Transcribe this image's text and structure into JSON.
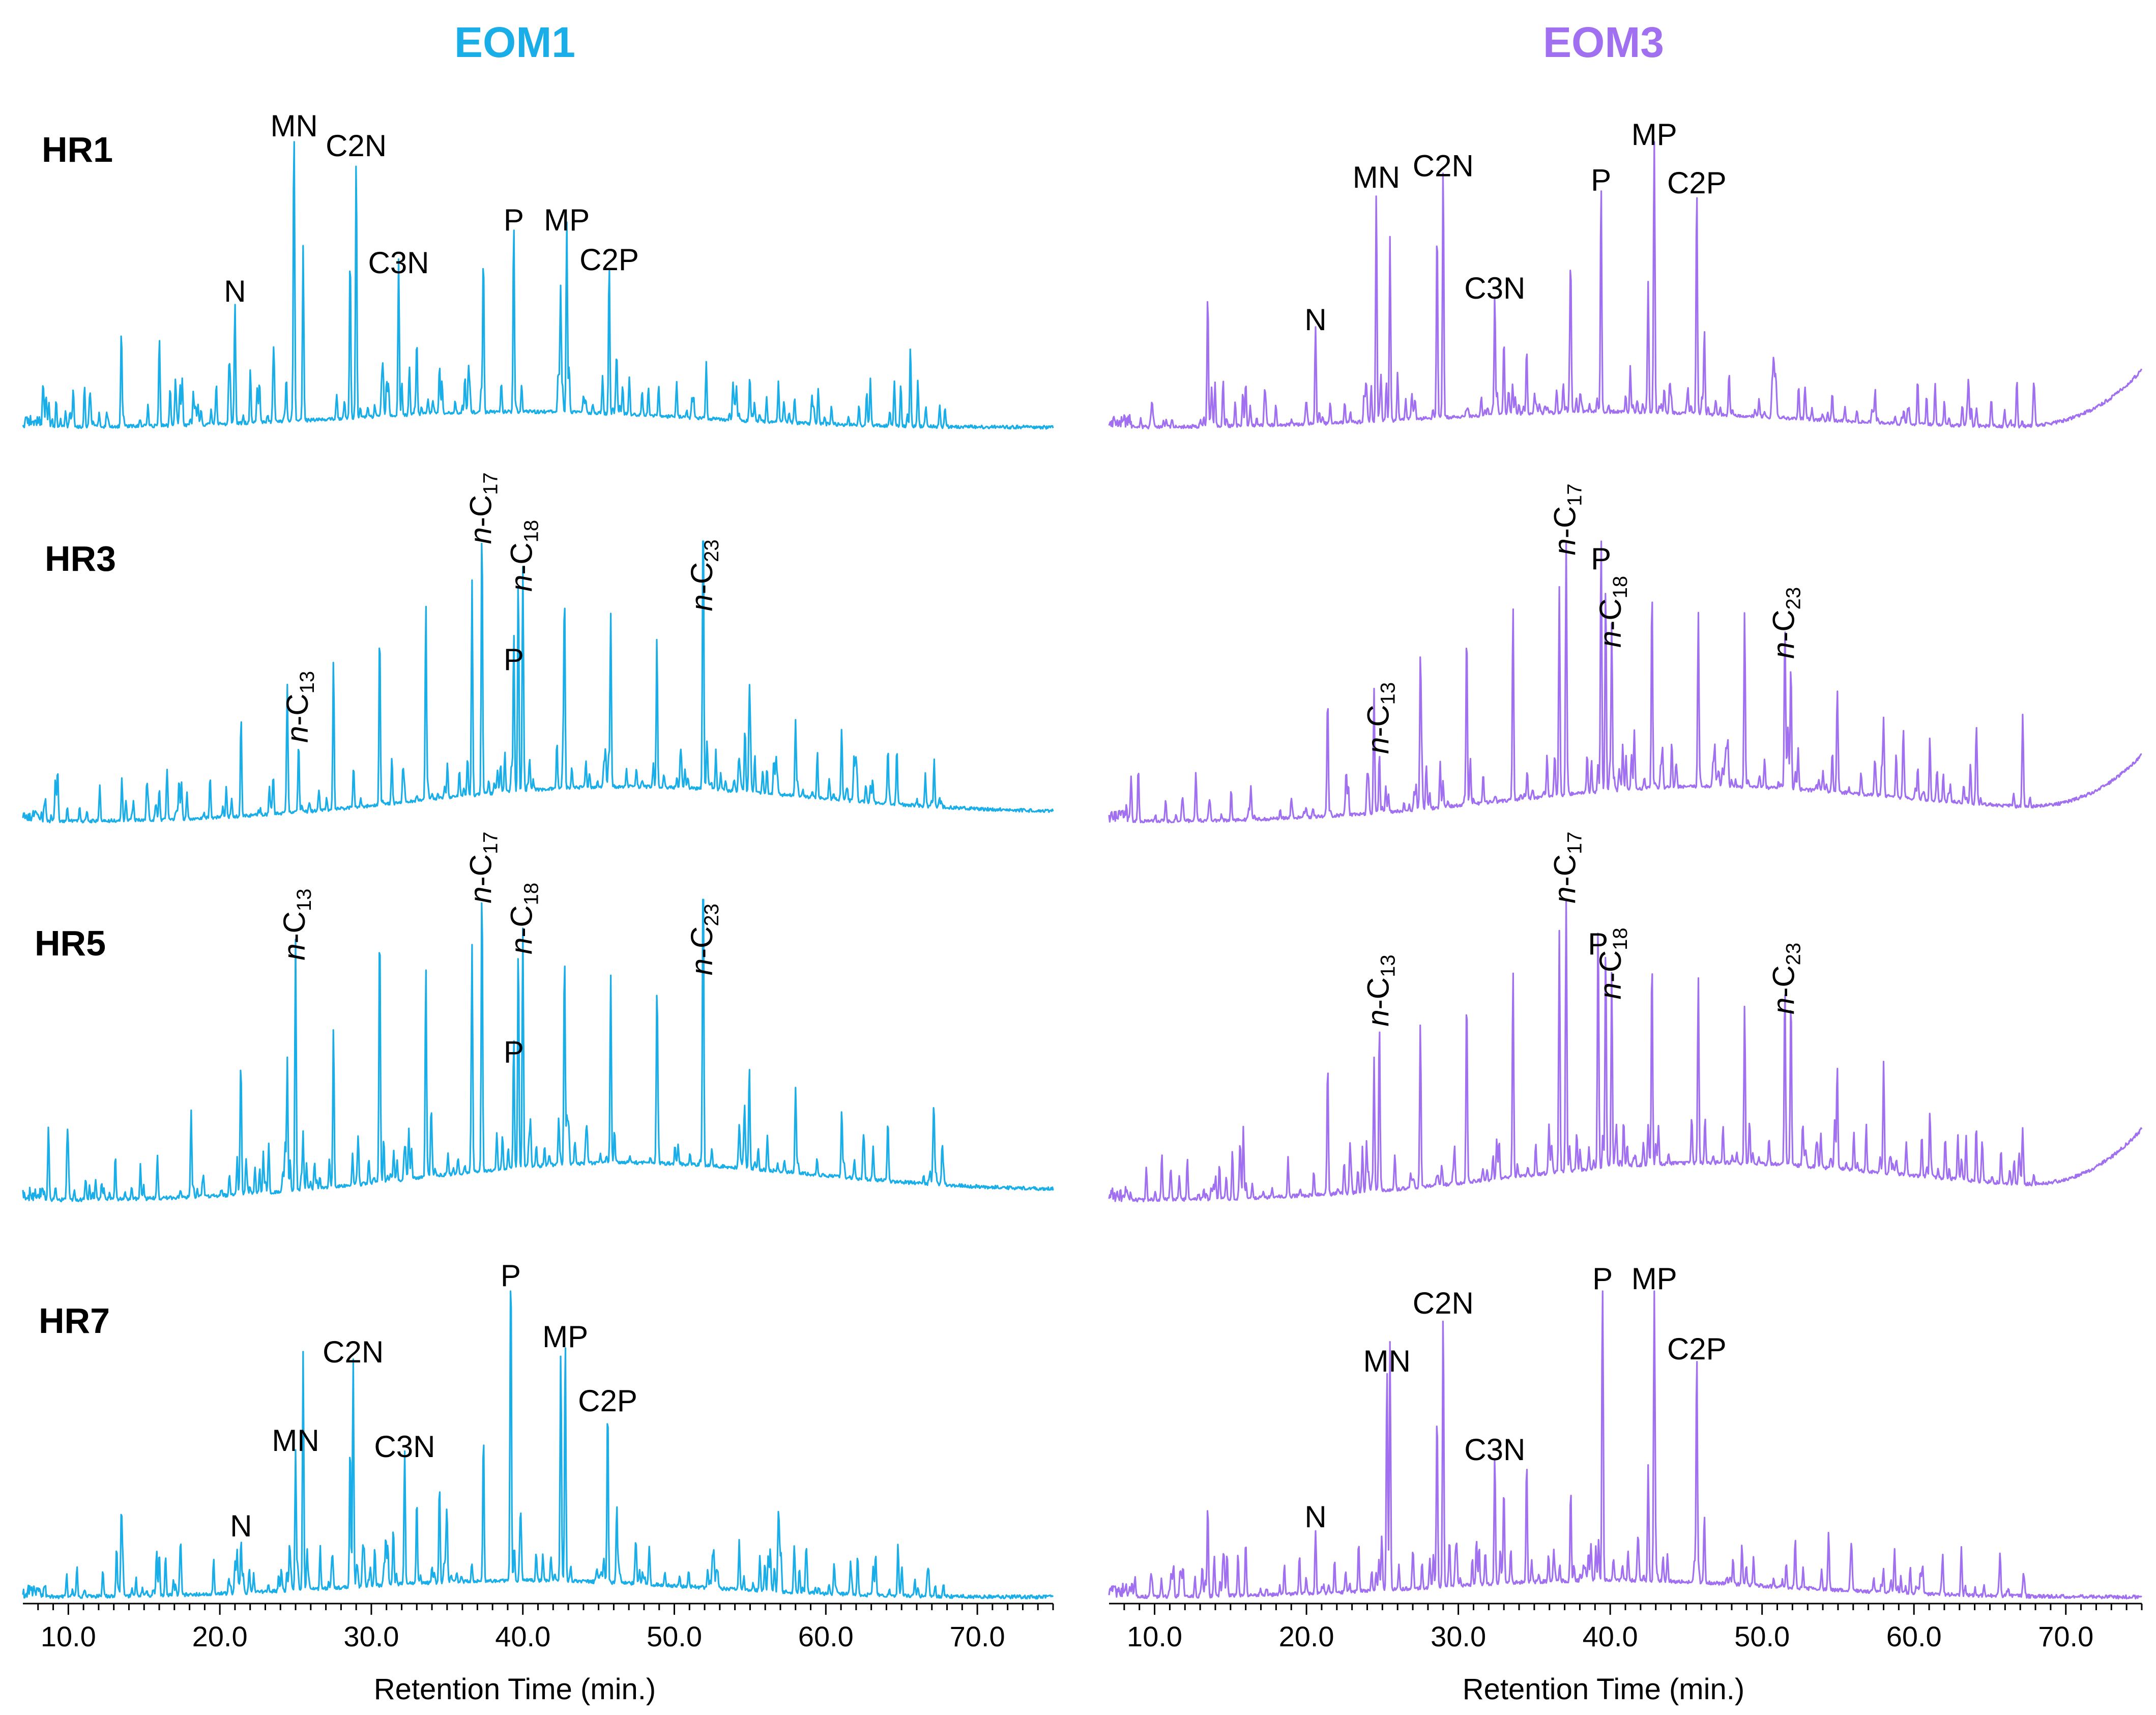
{
  "chart_data": {
    "type": "line",
    "columns": [
      {
        "title": "EOM1",
        "color": "#1aaee8"
      },
      {
        "title": "EOM3",
        "color": "#a070f0"
      }
    ],
    "rows": [
      "HR1",
      "HR3",
      "HR5",
      "HR7"
    ],
    "xlabel": "Retention Time (min.)",
    "xlim": [
      7.0,
      75.0
    ],
    "xticks": [
      "10.0",
      "20.0",
      "30.0",
      "40.0",
      "50.0",
      "60.0",
      "70.0"
    ],
    "xtick_values": [
      10,
      20,
      30,
      40,
      50,
      60,
      70
    ],
    "panels": [
      {
        "id": "EOM1-HR1",
        "column": 0,
        "row": 0,
        "kind": "aromatic",
        "tail": false,
        "labels": [
          {
            "text": "N",
            "x": 21.0,
            "h": 0.42
          },
          {
            "text": "MN",
            "x": 24.9,
            "h": 1.0
          },
          {
            "text": "C2N",
            "x": 29.0,
            "h": 0.93
          },
          {
            "text": "C3N",
            "x": 31.8,
            "h": 0.52
          },
          {
            "text": "P",
            "x": 39.4,
            "h": 0.67
          },
          {
            "text": "MP",
            "x": 42.9,
            "h": 0.67
          },
          {
            "text": "C2P",
            "x": 45.7,
            "h": 0.53
          }
        ]
      },
      {
        "id": "EOM3-HR1",
        "column": 1,
        "row": 0,
        "kind": "aromatic",
        "tail": true,
        "labels": [
          {
            "text": "N",
            "x": 20.6,
            "h": 0.32
          },
          {
            "text": "MN",
            "x": 24.6,
            "h": 0.82
          },
          {
            "text": "C2N",
            "x": 29.0,
            "h": 0.86
          },
          {
            "text": "C3N",
            "x": 32.4,
            "h": 0.43
          },
          {
            "text": "P",
            "x": 39.4,
            "h": 0.81
          },
          {
            "text": "MP",
            "x": 42.9,
            "h": 0.97
          },
          {
            "text": "C2P",
            "x": 45.7,
            "h": 0.8
          }
        ]
      },
      {
        "id": "EOM1-HR3",
        "column": 0,
        "row": 1,
        "kind": "alkane",
        "tail": false,
        "labels": [
          {
            "text": "n-C13",
            "sub": "13",
            "x": 25.2,
            "h": 0.26
          },
          {
            "text": "n-C17",
            "sub": "17",
            "x": 37.3,
            "h": 0.97
          },
          {
            "text": "n-C18",
            "sub": "18",
            "x": 40.0,
            "h": 0.8
          },
          {
            "text": "P",
            "x": 39.4,
            "h": 0.52
          },
          {
            "text": "n-C23",
            "sub": "23",
            "x": 51.9,
            "h": 0.73
          }
        ]
      },
      {
        "id": "EOM3-HR3",
        "column": 1,
        "row": 1,
        "kind": "alkane",
        "tail": true,
        "labels": [
          {
            "text": "n-C13",
            "sub": "13",
            "x": 24.8,
            "h": 0.22
          },
          {
            "text": "n-C17",
            "sub": "17",
            "x": 37.1,
            "h": 0.93
          },
          {
            "text": "P",
            "x": 39.4,
            "h": 0.88
          },
          {
            "text": "n-C18",
            "sub": "18",
            "x": 40.1,
            "h": 0.6
          },
          {
            "text": "n-C23",
            "sub": "23",
            "x": 51.5,
            "h": 0.56
          }
        ]
      },
      {
        "id": "EOM1-HR5",
        "column": 0,
        "row": 2,
        "kind": "alkane",
        "tail": false,
        "labels": [
          {
            "text": "n-C13",
            "sub": "13",
            "x": 25.0,
            "h": 0.78
          },
          {
            "text": "n-C17",
            "sub": "17",
            "x": 37.3,
            "h": 0.97
          },
          {
            "text": "n-C18",
            "sub": "18",
            "x": 40.0,
            "h": 0.8
          },
          {
            "text": "P",
            "x": 39.4,
            "h": 0.44
          },
          {
            "text": "n-C23",
            "sub": "23",
            "x": 51.9,
            "h": 0.73
          }
        ]
      },
      {
        "id": "EOM3-HR5",
        "column": 1,
        "row": 2,
        "kind": "alkane",
        "tail": true,
        "labels": [
          {
            "text": "n-C13",
            "sub": "13",
            "x": 24.8,
            "h": 0.56
          },
          {
            "text": "n-C17",
            "sub": "17",
            "x": 37.1,
            "h": 0.97
          },
          {
            "text": "P",
            "x": 39.2,
            "h": 0.8
          },
          {
            "text": "n-C18",
            "sub": "18",
            "x": 40.1,
            "h": 0.65
          },
          {
            "text": "n-C23",
            "sub": "23",
            "x": 51.5,
            "h": 0.6
          }
        ]
      },
      {
        "id": "EOM1-HR7",
        "column": 0,
        "row": 3,
        "kind": "aromatic",
        "tail": false,
        "labels": [
          {
            "text": "N",
            "x": 21.4,
            "h": 0.18
          },
          {
            "text": "MN",
            "x": 25.0,
            "h": 0.46
          },
          {
            "text": "C2N",
            "x": 28.8,
            "h": 0.75
          },
          {
            "text": "C3N",
            "x": 32.2,
            "h": 0.44
          },
          {
            "text": "P",
            "x": 39.2,
            "h": 1.0
          },
          {
            "text": "MP",
            "x": 42.8,
            "h": 0.8
          },
          {
            "text": "C2P",
            "x": 45.6,
            "h": 0.59
          }
        ]
      },
      {
        "id": "EOM3-HR7",
        "column": 1,
        "row": 3,
        "kind": "aromatic",
        "tail": false,
        "labels": [
          {
            "text": "N",
            "x": 20.6,
            "h": 0.21
          },
          {
            "text": "MN",
            "x": 25.3,
            "h": 0.72
          },
          {
            "text": "C2N",
            "x": 29.0,
            "h": 0.91
          },
          {
            "text": "C3N",
            "x": 32.4,
            "h": 0.43
          },
          {
            "text": "P",
            "x": 39.5,
            "h": 0.99
          },
          {
            "text": "MP",
            "x": 42.9,
            "h": 0.99
          },
          {
            "text": "C2P",
            "x": 45.7,
            "h": 0.76
          }
        ]
      }
    ]
  }
}
